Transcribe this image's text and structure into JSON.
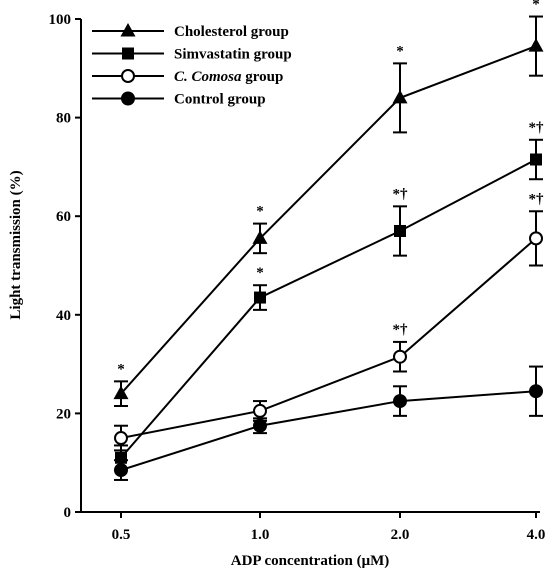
{
  "chart_data": {
    "type": "line",
    "xlabel": "ADP concentration (μM)",
    "ylabel": "Light transmission (%)",
    "categories": [
      "0.5",
      "1.0",
      "2.0",
      "4.0"
    ],
    "ylim": [
      0,
      100
    ],
    "yticks": [
      "0",
      "20",
      "40",
      "60",
      "80",
      "100"
    ],
    "legend_position": "top-left",
    "grid": false,
    "series": [
      {
        "name": "Cholesterol group",
        "marker": "triangle",
        "values": [
          24,
          55.5,
          84,
          94.5
        ],
        "errors": [
          2.5,
          3,
          7,
          6
        ],
        "annotations": [
          "*",
          "*",
          "*",
          "*"
        ]
      },
      {
        "name": "Simvastatin group",
        "marker": "square",
        "values": [
          11,
          43.5,
          57,
          71.5
        ],
        "errors": [
          2.5,
          2.5,
          5,
          4
        ],
        "annotations": [
          "",
          "*",
          "*†",
          "*†"
        ]
      },
      {
        "name": "C. Comosa group",
        "name_parts": [
          "C. Comosa",
          " group"
        ],
        "marker": "open-circle",
        "values": [
          15,
          20.5,
          31.5,
          55.5
        ],
        "errors": [
          2.5,
          2,
          3,
          5.5
        ],
        "annotations": [
          "",
          "",
          "*†",
          "*†"
        ]
      },
      {
        "name": "Control group",
        "marker": "filled-circle",
        "values": [
          8.5,
          17.5,
          22.5,
          24.5
        ],
        "errors": [
          2,
          1.5,
          3,
          5
        ],
        "annotations": [
          "",
          "",
          "",
          ""
        ]
      }
    ]
  }
}
